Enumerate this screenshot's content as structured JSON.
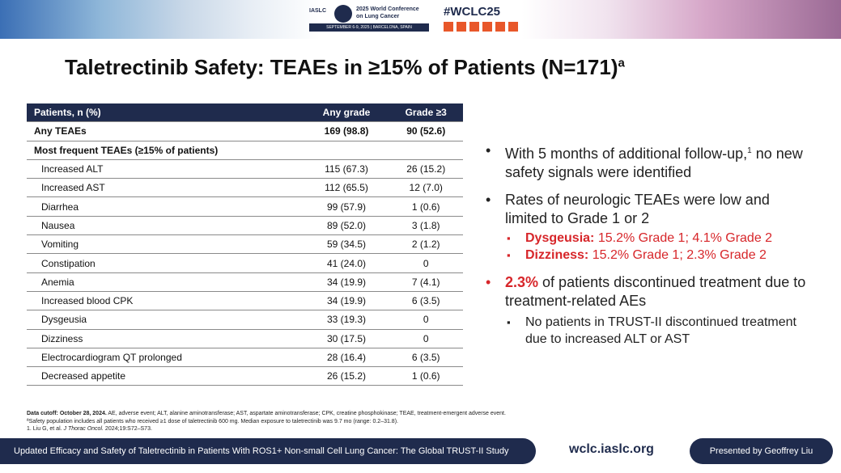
{
  "header": {
    "org": "IASLC",
    "conference": [
      "2025 World Conference",
      "on Lung Cancer"
    ],
    "dates": "SEPTEMBER 6-9, 2025 | BARCELONA, SPAIN",
    "hashtag": "#WCLC25"
  },
  "title": {
    "text": "Taletrectinib Safety: TEAEs in ≥15% of Patients (N=171)",
    "superscript": "a"
  },
  "table": {
    "columns": [
      "Patients, n (%)",
      "Any grade",
      "Grade ≥3"
    ],
    "total": [
      "Any TEAEs",
      "169 (98.8)",
      "90 (52.6)"
    ],
    "section": "Most frequent TEAEs (≥15% of patients)",
    "rows": [
      [
        "Increased ALT",
        "115 (67.3)",
        "26 (15.2)"
      ],
      [
        "Increased AST",
        "112 (65.5)",
        "12 (7.0)"
      ],
      [
        "Diarrhea",
        "99 (57.9)",
        "1 (0.6)"
      ],
      [
        "Nausea",
        "89 (52.0)",
        "3 (1.8)"
      ],
      [
        "Vomiting",
        "59 (34.5)",
        "2 (1.2)"
      ],
      [
        "Constipation",
        "41 (24.0)",
        "0"
      ],
      [
        "Anemia",
        "34 (19.9)",
        "7 (4.1)"
      ],
      [
        "Increased blood CPK",
        "34 (19.9)",
        "6 (3.5)"
      ],
      [
        "Dysgeusia",
        "33 (19.3)",
        "0"
      ],
      [
        "Dizziness",
        "30 (17.5)",
        "0"
      ],
      [
        "Electrocardiogram QT prolonged",
        "28 (16.4)",
        "6 (3.5)"
      ],
      [
        "Decreased appetite",
        "26 (15.2)",
        "1 (0.6)"
      ]
    ]
  },
  "bullets": {
    "followup": {
      "text": "With 5 months of additional follow-up,",
      "superscript": "1",
      "continuation": "no new safety signals were identified"
    },
    "neurologic": {
      "text": "Rates of neurologic TEAEs were low and limited to Grade 1 or 2",
      "items": [
        {
          "label": "Dysgeusia:",
          "text": "15.2% Grade 1; 4.1% Grade 2"
        },
        {
          "label": "Dizziness:",
          "text": "15.2% Grade 1; 2.3% Grade 2"
        }
      ]
    },
    "discontinued": {
      "highlight": "2.3%",
      "text": "of patients discontinued treatment due to treatment-related AEs",
      "items": [
        "No patients in TRUST-II discontinued treatment due to increased ALT or AST"
      ]
    }
  },
  "footnotes": {
    "cutoff": "Data cutoff: October 28, 2024.",
    "abbreviations": "AE, adverse event; ALT, alanine aminotransferase; AST, aspartate aminotransferase; CPK, creatine phosphokinase; TEAE, treatment-emergent adverse event.",
    "safety": "ªSafety population includes all patients who received ≥1 dose of taletrectinib 600 mg. Median exposure to taletrectinib was 9.7 mo (range: 0.2–31.8).",
    "reference": {
      "before": "1. Liu G, et al.",
      "journal": "J Thorac Oncol.",
      "after": "2024;19:S72–S73."
    }
  },
  "footer": {
    "study": "Updated Efficacy and Safety of Taletrectinib in Patients With ROS1+ Non-small Cell Lung Cancer: The Global TRUST-II Study",
    "website": "wclc.iaslc.org",
    "presenter": "Presented by Geoffrey Liu"
  }
}
